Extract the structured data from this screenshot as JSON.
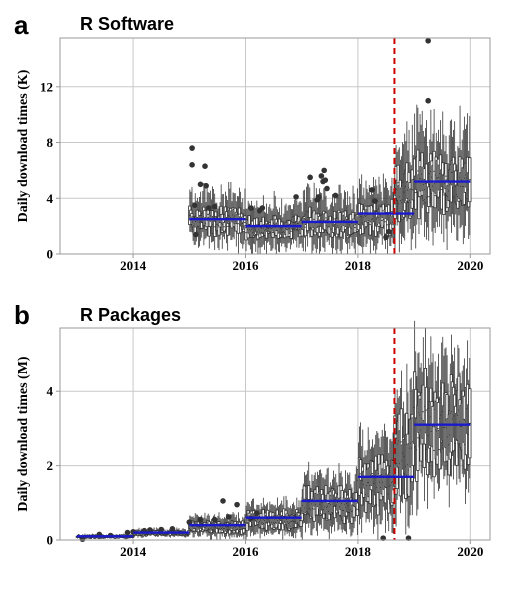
{
  "chart_data": [
    {
      "type": "boxplot",
      "panel_label": "a",
      "title": "R Software",
      "xlabel": "",
      "ylabel": "Daily download times (K)",
      "x_ticks": [
        2014,
        2016,
        2018,
        2020
      ],
      "y_ticks": [
        0,
        4,
        8,
        12
      ],
      "xlim": [
        2012.7,
        2020.35
      ],
      "ylim": [
        0,
        15.5
      ],
      "grid": true,
      "vline": {
        "x": 2018.65,
        "color": "#cc0000",
        "style": "dashed"
      },
      "mean_lines": [
        {
          "start": 2015.0,
          "end": 2016.0,
          "value": 2.5
        },
        {
          "start": 2016.0,
          "end": 2017.0,
          "value": 2.0
        },
        {
          "start": 2017.0,
          "end": 2018.0,
          "value": 2.3
        },
        {
          "start": 2018.0,
          "end": 2019.0,
          "value": 2.9
        },
        {
          "start": 2019.0,
          "end": 2020.0,
          "value": 5.2
        }
      ],
      "box_levels": [
        {
          "start": 2015.0,
          "end": 2016.0,
          "median": 2.4,
          "iqr": 1.0,
          "whisker": 2.2
        },
        {
          "start": 2016.0,
          "end": 2017.0,
          "median": 1.9,
          "iqr": 0.9,
          "whisker": 2.0
        },
        {
          "start": 2017.0,
          "end": 2018.0,
          "median": 2.2,
          "iqr": 1.1,
          "whisker": 2.3
        },
        {
          "start": 2018.0,
          "end": 2018.65,
          "median": 2.6,
          "iqr": 1.3,
          "whisker": 2.6
        },
        {
          "start": 2018.65,
          "end": 2019.0,
          "median": 4.4,
          "iqr": 2.0,
          "whisker": 3.6
        },
        {
          "start": 2019.0,
          "end": 2020.0,
          "median": 5.0,
          "iqr": 2.3,
          "whisker": 4.2
        }
      ],
      "outliers": [
        [
          2015.05,
          7.6
        ],
        [
          2015.05,
          6.4
        ],
        [
          2015.2,
          5.0
        ],
        [
          2015.3,
          4.9
        ],
        [
          2015.28,
          6.3
        ],
        [
          2015.1,
          3.5
        ],
        [
          2015.12,
          1.4
        ],
        [
          2015.35,
          3.3
        ],
        [
          2015.45,
          3.4
        ],
        [
          2016.1,
          3.3
        ],
        [
          2016.25,
          3.1
        ],
        [
          2016.3,
          3.3
        ],
        [
          2016.9,
          4.1
        ],
        [
          2017.15,
          5.5
        ],
        [
          2017.28,
          3.9
        ],
        [
          2017.3,
          4.1
        ],
        [
          2017.35,
          5.6
        ],
        [
          2017.38,
          5.2
        ],
        [
          2017.4,
          6.0
        ],
        [
          2017.42,
          5.3
        ],
        [
          2017.45,
          4.7
        ],
        [
          2017.6,
          4.2
        ],
        [
          2018.25,
          4.6
        ],
        [
          2018.3,
          3.8
        ],
        [
          2018.5,
          1.2
        ],
        [
          2018.55,
          1.6
        ],
        [
          2019.25,
          15.3
        ],
        [
          2019.25,
          11.0
        ]
      ]
    },
    {
      "type": "boxplot",
      "panel_label": "b",
      "title": "R Packages",
      "xlabel": "",
      "ylabel": "Daily download times (M)",
      "x_ticks": [
        2014,
        2016,
        2018,
        2020
      ],
      "y_ticks": [
        0,
        2,
        4
      ],
      "xlim": [
        2012.7,
        2020.35
      ],
      "ylim": [
        0,
        5.7
      ],
      "grid": true,
      "vline": {
        "x": 2018.65,
        "color": "#cc0000",
        "style": "dashed"
      },
      "mean_lines": [
        {
          "start": 2013.0,
          "end": 2014.0,
          "value": 0.1
        },
        {
          "start": 2014.0,
          "end": 2015.0,
          "value": 0.2
        },
        {
          "start": 2015.0,
          "end": 2016.0,
          "value": 0.4
        },
        {
          "start": 2016.0,
          "end": 2017.0,
          "value": 0.6
        },
        {
          "start": 2017.0,
          "end": 2018.0,
          "value": 1.05
        },
        {
          "start": 2018.0,
          "end": 2019.0,
          "value": 1.7
        },
        {
          "start": 2019.0,
          "end": 2020.0,
          "value": 3.1
        }
      ],
      "box_levels": [
        {
          "start": 2013.0,
          "end": 2014.0,
          "median": 0.09,
          "iqr": 0.05,
          "whisker": 0.05
        },
        {
          "start": 2014.0,
          "end": 2015.0,
          "median": 0.18,
          "iqr": 0.08,
          "whisker": 0.1
        },
        {
          "start": 2015.0,
          "end": 2016.0,
          "median": 0.35,
          "iqr": 0.2,
          "whisker": 0.3
        },
        {
          "start": 2016.0,
          "end": 2017.0,
          "median": 0.55,
          "iqr": 0.3,
          "whisker": 0.45
        },
        {
          "start": 2017.0,
          "end": 2018.0,
          "median": 0.95,
          "iqr": 0.55,
          "whisker": 0.8
        },
        {
          "start": 2018.0,
          "end": 2018.65,
          "median": 1.5,
          "iqr": 0.9,
          "whisker": 1.2
        },
        {
          "start": 2018.65,
          "end": 2019.0,
          "median": 2.3,
          "iqr": 1.4,
          "whisker": 1.5
        },
        {
          "start": 2019.0,
          "end": 2020.0,
          "median": 3.0,
          "iqr": 1.5,
          "whisker": 1.6
        }
      ],
      "outliers": [
        [
          2013.1,
          0.02
        ],
        [
          2013.4,
          0.15
        ],
        [
          2013.6,
          0.12
        ],
        [
          2013.9,
          0.2
        ],
        [
          2014.0,
          0.22
        ],
        [
          2014.2,
          0.25
        ],
        [
          2014.3,
          0.27
        ],
        [
          2014.5,
          0.28
        ],
        [
          2014.7,
          0.3
        ],
        [
          2015.0,
          0.48
        ],
        [
          2015.2,
          0.55
        ],
        [
          2015.45,
          0.55
        ],
        [
          2015.7,
          0.62
        ],
        [
          2015.6,
          1.05
        ],
        [
          2015.85,
          0.95
        ],
        [
          2016.1,
          0.58
        ],
        [
          2016.2,
          0.72
        ],
        [
          2018.45,
          0.05
        ],
        [
          2018.9,
          0.05
        ]
      ]
    }
  ]
}
